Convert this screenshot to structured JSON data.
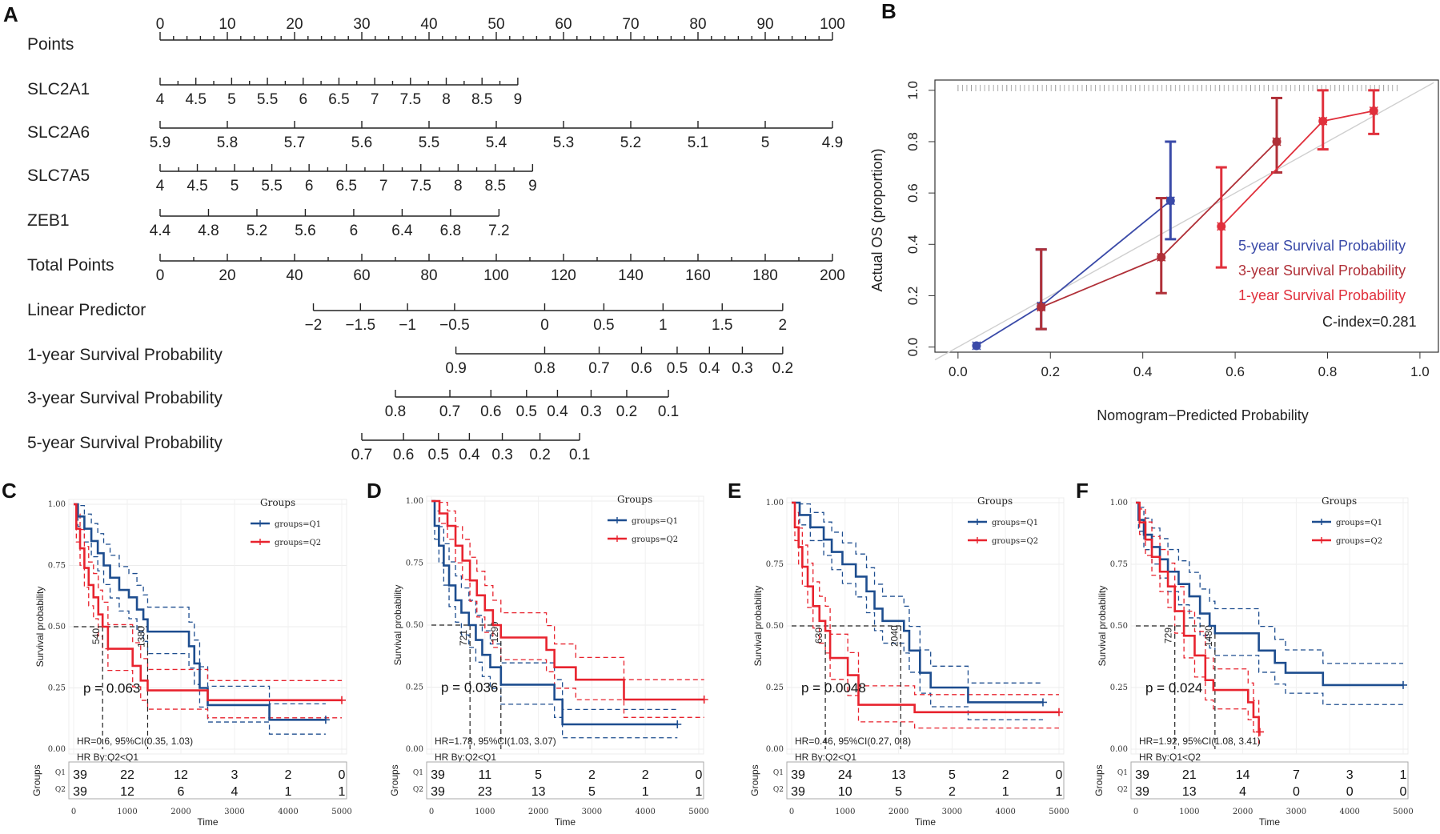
{
  "panels": {
    "A": "A",
    "B": "B",
    "C": "C",
    "D": "D",
    "E": "E",
    "F": "F"
  },
  "chart_data": [
    {
      "id": "A",
      "type": "nomogram",
      "rows": [
        {
          "label": "Points",
          "ticks": [
            "0",
            "10",
            "20",
            "30",
            "40",
            "50",
            "60",
            "70",
            "80",
            "90",
            "100"
          ],
          "ticks_above": true,
          "from": 0,
          "to": 100
        },
        {
          "label": "SLC2A1",
          "ticks": [
            "4",
            "4.5",
            "5",
            "5.5",
            "6",
            "6.5",
            "7",
            "7.5",
            "8",
            "8.5",
            "9"
          ],
          "from": 0,
          "to": 53.2
        },
        {
          "label": "SLC2A6",
          "ticks": [
            "5.9",
            "5.8",
            "5.7",
            "5.6",
            "5.5",
            "5.4",
            "5.3",
            "5.2",
            "5.1",
            "5",
            "4.9"
          ],
          "from": 0,
          "to": 100
        },
        {
          "label": "SLC7A5",
          "ticks": [
            "4",
            "4.5",
            "5",
            "5.5",
            "6",
            "6.5",
            "7",
            "7.5",
            "8",
            "8.5",
            "9"
          ],
          "from": 0,
          "to": 55.4
        },
        {
          "label": "ZEB1",
          "ticks": [
            "4.4",
            "4.8",
            "5.2",
            "5.6",
            "6",
            "6.4",
            "6.8",
            "7.2"
          ],
          "from": 0,
          "to": 50.4
        },
        {
          "label": "Total Points",
          "ticks": [
            "0",
            "20",
            "40",
            "60",
            "80",
            "100",
            "120",
            "140",
            "160",
            "180",
            "200"
          ],
          "from": 0,
          "to": 100
        },
        {
          "label": "Linear Predictor",
          "ticks": [
            "−2",
            "−1.5",
            "−1",
            "−0.5",
            "0",
            "0.5",
            "1",
            "1.5",
            "2"
          ],
          "positions": [
            22.8,
            29.8,
            36.8,
            43.8,
            57.2,
            66.0,
            74.8,
            83.6,
            92.6
          ],
          "from": 22.8,
          "to": 92.6
        },
        {
          "label": "1-year Survival Probability",
          "ticks": [
            "0.9",
            "0.8",
            "0.7",
            "0.6",
            "0.5",
            "0.4",
            "0.3",
            "0.2"
          ],
          "positions": [
            44.0,
            57.2,
            65.3,
            71.6,
            76.9,
            81.7,
            86.6,
            92.6
          ],
          "from": 44.0,
          "to": 92.6
        },
        {
          "label": "3-year Survival Probability",
          "ticks": [
            "0.8",
            "0.7",
            "0.6",
            "0.5",
            "0.4",
            "0.3",
            "0.2",
            "0.1"
          ],
          "positions": [
            35.0,
            43.1,
            49.2,
            54.5,
            59.1,
            64.1,
            69.4,
            75.6
          ],
          "from": 35.0,
          "to": 75.6
        },
        {
          "label": "5-year Survival Probability",
          "ticks": [
            "0.7",
            "0.6",
            "0.5",
            "0.4",
            "0.3",
            "0.2",
            "0.1"
          ],
          "positions": [
            30.0,
            36.2,
            41.4,
            46.0,
            50.9,
            56.5,
            62.4
          ],
          "from": 30.0,
          "to": 62.4
        }
      ]
    },
    {
      "id": "B",
      "type": "calibration",
      "xlabel": "Nomogram−Predicted Probability",
      "ylabel": "Actual OS (proportion)",
      "xlim": [
        0.0,
        1.0
      ],
      "ylim": [
        0.0,
        1.0
      ],
      "xticks": [
        "0.0",
        "0.2",
        "0.4",
        "0.6",
        "0.8",
        "1.0"
      ],
      "yticks": [
        "0.0",
        "0.2",
        "0.4",
        "0.6",
        "0.8",
        "1.0"
      ],
      "c_index": "C-index=0.281",
      "series": [
        {
          "name": "5-year Survival Probability",
          "color": "#3a4aa8",
          "points": [
            {
              "x": 0.04,
              "y": 0.005,
              "lo": 0.005,
              "hi": 0.005
            },
            {
              "x": 0.18,
              "y": 0.16,
              "lo": 0.07,
              "hi": 0.38
            },
            {
              "x": 0.46,
              "y": 0.57,
              "lo": 0.42,
              "hi": 0.8
            }
          ]
        },
        {
          "name": "3-year Survival Probability",
          "color": "#b03038",
          "points": [
            {
              "x": 0.18,
              "y": 0.155,
              "lo": 0.07,
              "hi": 0.38
            },
            {
              "x": 0.44,
              "y": 0.35,
              "lo": 0.21,
              "hi": 0.58
            },
            {
              "x": 0.69,
              "y": 0.8,
              "lo": 0.68,
              "hi": 0.97
            }
          ]
        },
        {
          "name": "1-year Survival Probability",
          "color": "#e0303c",
          "points": [
            {
              "x": 0.57,
              "y": 0.47,
              "lo": 0.31,
              "hi": 0.7
            },
            {
              "x": 0.79,
              "y": 0.88,
              "lo": 0.77,
              "hi": 1.0
            },
            {
              "x": 0.9,
              "y": 0.92,
              "lo": 0.83,
              "hi": 1.0
            }
          ]
        }
      ]
    },
    {
      "id": "C",
      "type": "kaplan-meier",
      "xmax": 5000,
      "legend_title": "Groups",
      "legend": [
        "groups=Q1",
        "groups=Q2"
      ],
      "xlabel": "Time",
      "ylabel": "Survival probability",
      "risk_label": "Groups",
      "yticks": [
        "0.00",
        "0.25",
        "0.50",
        "0.75",
        "1.00"
      ],
      "xticks": [
        "0",
        "1000",
        "2000",
        "3000",
        "4000",
        "5000"
      ],
      "p": "p = 0.063",
      "hr": "HR=0.6, 95%CI(0.35, 1.03)",
      "hrby": "HR By:Q2<Q1",
      "median_q1": "1380",
      "median_q2": "540",
      "q1_steps": [
        [
          0,
          1
        ],
        [
          80,
          0.95
        ],
        [
          200,
          0.9
        ],
        [
          330,
          0.85
        ],
        [
          450,
          0.8
        ],
        [
          560,
          0.75
        ],
        [
          680,
          0.7
        ],
        [
          850,
          0.65
        ],
        [
          1030,
          0.62
        ],
        [
          1180,
          0.57
        ],
        [
          1300,
          0.53
        ],
        [
          1380,
          0.48
        ],
        [
          2050,
          0.48
        ],
        [
          2150,
          0.42
        ],
        [
          2250,
          0.35
        ],
        [
          2350,
          0.25
        ],
        [
          2500,
          0.18
        ],
        [
          3650,
          0.12
        ],
        [
          4700,
          0.12
        ]
      ],
      "q2_steps": [
        [
          0,
          1
        ],
        [
          50,
          0.9
        ],
        [
          120,
          0.82
        ],
        [
          200,
          0.74
        ],
        [
          280,
          0.67
        ],
        [
          370,
          0.62
        ],
        [
          460,
          0.55
        ],
        [
          540,
          0.5
        ],
        [
          640,
          0.41
        ],
        [
          1100,
          0.34
        ],
        [
          1250,
          0.28
        ],
        [
          1380,
          0.24
        ],
        [
          2350,
          0.24
        ],
        [
          2500,
          0.2
        ],
        [
          5000,
          0.2
        ]
      ],
      "risk": {
        "q1": [
          "39",
          "22",
          "12",
          "3",
          "2",
          "0"
        ],
        "q2": [
          "39",
          "12",
          "6",
          "4",
          "1",
          "1"
        ]
      }
    },
    {
      "id": "D",
      "type": "kaplan-meier",
      "xmax": 5000,
      "legend_title": "Groups",
      "legend": [
        "groups=Q1",
        "groups=Q2"
      ],
      "xlabel": "Time",
      "ylabel": "Survival probability",
      "risk_label": "Groups",
      "yticks": [
        "0.00",
        "0.25",
        "0.50",
        "0.75",
        "1.00"
      ],
      "xticks": [
        "0",
        "1000",
        "2000",
        "3000",
        "4000",
        "5000"
      ],
      "p": "p = 0.036",
      "hr": "HR=1.78, 95%CI(1.03, 3.07)",
      "hrby": "HR By:Q2<Q1",
      "median_q1": "721",
      "median_q2": "1299",
      "q1_steps": [
        [
          0,
          1
        ],
        [
          60,
          0.9
        ],
        [
          140,
          0.82
        ],
        [
          230,
          0.74
        ],
        [
          330,
          0.66
        ],
        [
          450,
          0.6
        ],
        [
          560,
          0.55
        ],
        [
          700,
          0.5
        ],
        [
          830,
          0.44
        ],
        [
          950,
          0.38
        ],
        [
          1100,
          0.33
        ],
        [
          1300,
          0.26
        ],
        [
          2300,
          0.2
        ],
        [
          2450,
          0.1
        ],
        [
          4600,
          0.1
        ]
      ],
      "q2_steps": [
        [
          0,
          1
        ],
        [
          150,
          0.95
        ],
        [
          300,
          0.9
        ],
        [
          450,
          0.82
        ],
        [
          580,
          0.76
        ],
        [
          720,
          0.68
        ],
        [
          850,
          0.62
        ],
        [
          1000,
          0.56
        ],
        [
          1150,
          0.5
        ],
        [
          1299,
          0.45
        ],
        [
          2150,
          0.4
        ],
        [
          2300,
          0.33
        ],
        [
          2700,
          0.28
        ],
        [
          3600,
          0.2
        ],
        [
          5100,
          0.2
        ]
      ],
      "risk": {
        "q1": [
          "39",
          "11",
          "5",
          "2",
          "2",
          "0"
        ],
        "q2": [
          "39",
          "23",
          "13",
          "5",
          "1",
          "1"
        ]
      }
    },
    {
      "id": "E",
      "type": "kaplan-meier",
      "xmax": 5000,
      "legend_title": "Groups",
      "legend": [
        "groups=Q1",
        "groups=Q2"
      ],
      "xlabel": "Time",
      "ylabel": "Survival probability",
      "risk_label": "Groups",
      "yticks": [
        "0.00",
        "0.25",
        "0.50",
        "0.75",
        "1.00"
      ],
      "xticks": [
        "0",
        "1000",
        "2000",
        "3000",
        "4000",
        "5000"
      ],
      "p": "p = 0.0048",
      "hr": "HR=0.46, 95%CI(0.27, 0.8)",
      "hrby": "HR By:Q2<Q1",
      "median_q1": "2040",
      "median_q2": "630",
      "q1_steps": [
        [
          0,
          1
        ],
        [
          150,
          0.95
        ],
        [
          350,
          0.9
        ],
        [
          600,
          0.85
        ],
        [
          750,
          0.8
        ],
        [
          950,
          0.75
        ],
        [
          1200,
          0.7
        ],
        [
          1400,
          0.64
        ],
        [
          1550,
          0.57
        ],
        [
          1700,
          0.52
        ],
        [
          2100,
          0.48
        ],
        [
          2200,
          0.4
        ],
        [
          2400,
          0.31
        ],
        [
          2600,
          0.25
        ],
        [
          3300,
          0.19
        ],
        [
          4700,
          0.19
        ]
      ],
      "q2_steps": [
        [
          0,
          1
        ],
        [
          60,
          0.9
        ],
        [
          130,
          0.82
        ],
        [
          200,
          0.74
        ],
        [
          300,
          0.66
        ],
        [
          400,
          0.58
        ],
        [
          520,
          0.52
        ],
        [
          630,
          0.48
        ],
        [
          720,
          0.37
        ],
        [
          1050,
          0.3
        ],
        [
          1250,
          0.18
        ],
        [
          2300,
          0.15
        ],
        [
          5000,
          0.15
        ]
      ],
      "risk": {
        "q1": [
          "39",
          "24",
          "13",
          "5",
          "2",
          "0"
        ],
        "q2": [
          "39",
          "10",
          "5",
          "2",
          "1",
          "1"
        ]
      }
    },
    {
      "id": "F",
      "type": "kaplan-meier",
      "xmax": 5000,
      "legend_title": "Groups",
      "legend": [
        "groups=Q1",
        "groups=Q2"
      ],
      "xlabel": "Time",
      "ylabel": "Survival probability",
      "risk_label": "Groups",
      "yticks": [
        "0.00",
        "0.25",
        "0.50",
        "0.75",
        "1.00"
      ],
      "xticks": [
        "0",
        "1000",
        "2000",
        "3000",
        "4000",
        "5000"
      ],
      "p": "p = 0.024",
      "hr": "HR=1.92, 95%CI(1.08, 3.41)",
      "hrby": "HR By:Q1<Q2",
      "median_q1": "1480",
      "median_q2": "729",
      "q1_steps": [
        [
          0,
          1
        ],
        [
          50,
          0.93
        ],
        [
          150,
          0.87
        ],
        [
          300,
          0.82
        ],
        [
          450,
          0.77
        ],
        [
          600,
          0.72
        ],
        [
          800,
          0.67
        ],
        [
          1000,
          0.62
        ],
        [
          1200,
          0.55
        ],
        [
          1380,
          0.5
        ],
        [
          1480,
          0.47
        ],
        [
          2000,
          0.47
        ],
        [
          2300,
          0.4
        ],
        [
          2600,
          0.35
        ],
        [
          2800,
          0.31
        ],
        [
          3500,
          0.26
        ],
        [
          5000,
          0.26
        ]
      ],
      "q2_steps": [
        [
          0,
          1
        ],
        [
          70,
          0.92
        ],
        [
          180,
          0.85
        ],
        [
          300,
          0.78
        ],
        [
          450,
          0.72
        ],
        [
          600,
          0.66
        ],
        [
          729,
          0.56
        ],
        [
          900,
          0.46
        ],
        [
          1100,
          0.38
        ],
        [
          1300,
          0.28
        ],
        [
          1450,
          0.24
        ],
        [
          2100,
          0.19
        ],
        [
          2200,
          0.13
        ],
        [
          2300,
          0.07
        ],
        [
          2320,
          0.07
        ]
      ],
      "risk": {
        "q1": [
          "39",
          "21",
          "14",
          "7",
          "3",
          "1"
        ],
        "q2": [
          "39",
          "13",
          "4",
          "0",
          "0",
          "0"
        ]
      }
    }
  ]
}
